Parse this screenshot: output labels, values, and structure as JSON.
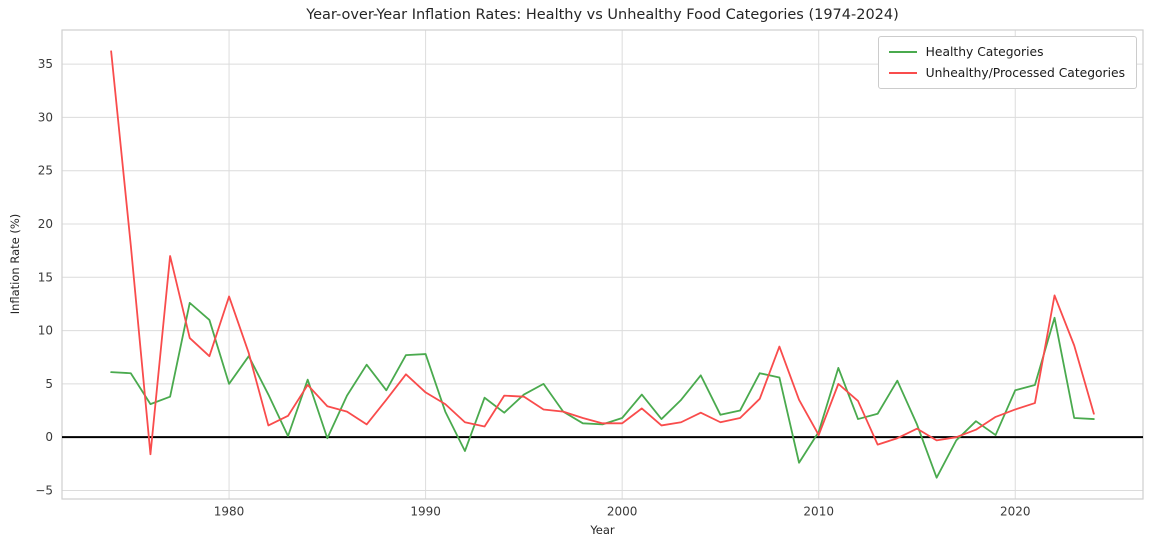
{
  "chart_data": {
    "type": "line",
    "title": "Year-over-Year Inflation Rates: Healthy vs Unhealthy Food Categories (1974-2024)",
    "xlabel": "Year",
    "ylabel": "Inflation Rate (%)",
    "x": [
      1974,
      1975,
      1976,
      1977,
      1978,
      1979,
      1980,
      1981,
      1982,
      1983,
      1984,
      1985,
      1986,
      1987,
      1988,
      1989,
      1990,
      1991,
      1992,
      1993,
      1994,
      1995,
      1996,
      1997,
      1998,
      1999,
      2000,
      2001,
      2002,
      2003,
      2004,
      2005,
      2006,
      2007,
      2008,
      2009,
      2010,
      2011,
      2012,
      2013,
      2014,
      2015,
      2016,
      2017,
      2018,
      2019,
      2020,
      2021,
      2022,
      2023,
      2024
    ],
    "series": [
      {
        "name": "Healthy Categories",
        "color": "#4aaa4e",
        "values": [
          6.1,
          6.0,
          3.1,
          3.8,
          12.6,
          11.0,
          5.0,
          7.6,
          4.0,
          0.1,
          5.4,
          -0.1,
          3.9,
          6.8,
          4.4,
          7.7,
          7.8,
          2.4,
          -1.3,
          3.7,
          2.3,
          4.0,
          5.0,
          2.4,
          1.3,
          1.2,
          1.8,
          4.0,
          1.7,
          3.5,
          5.8,
          2.1,
          2.5,
          6.0,
          5.6,
          -2.4,
          0.5,
          6.5,
          1.7,
          2.2,
          5.3,
          1.2,
          -3.8,
          -0.3,
          1.5,
          0.2,
          4.4,
          4.9,
          11.2,
          1.8,
          1.7
        ]
      },
      {
        "name": "Unhealthy/Processed Categories",
        "color": "#f94c4c",
        "values": [
          36.2,
          18.0,
          -1.6,
          17.0,
          9.3,
          7.6,
          13.2,
          7.9,
          1.1,
          2.0,
          4.9,
          2.9,
          2.4,
          1.2,
          3.5,
          5.9,
          4.2,
          3.1,
          1.4,
          1.0,
          3.9,
          3.8,
          2.6,
          2.4,
          1.8,
          1.3,
          1.3,
          2.7,
          1.1,
          1.4,
          2.3,
          1.4,
          1.8,
          3.6,
          8.5,
          3.5,
          0.2,
          5.0,
          3.4,
          -0.7,
          -0.1,
          0.8,
          -0.3,
          0.0,
          0.7,
          1.9,
          2.6,
          3.2,
          13.3,
          8.6,
          2.2
        ]
      }
    ],
    "xlim": [
      1971.5,
      2026.5
    ],
    "ylim": [
      -5.8,
      38.2
    ],
    "x_ticks": [
      1980,
      1990,
      2000,
      2010,
      2020
    ],
    "y_ticks": [
      -5,
      0,
      5,
      10,
      15,
      20,
      25,
      30,
      35
    ],
    "grid": true,
    "legend_position": "upper right",
    "zero_line_color": "#000000",
    "grid_color": "#dcdcdc",
    "axis_color": "#cfcfcf",
    "tick_label_color": "#3a3a3a",
    "line_width": 1.8
  }
}
